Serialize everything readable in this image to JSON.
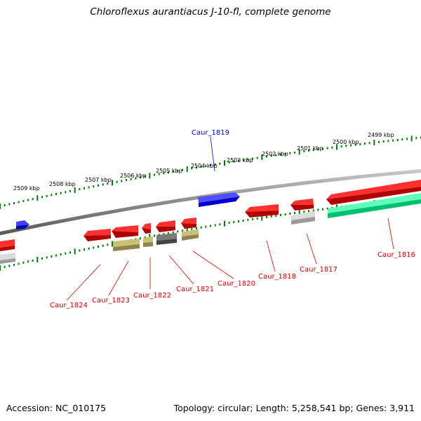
{
  "title": "Chloroflexus aurantiacus J-10-fl, complete genome",
  "footer": {
    "accession": "Accession: NC_010175",
    "info": "Topology: circular; Length: 5,258,541 bp; Genes: 3,911"
  },
  "colors": {
    "backbone": "#8a8a8a",
    "cds": "#ff0000",
    "highlight": "#0000ff",
    "rna": "#1aff99",
    "khaki": "#b9b06a",
    "dark_gray": "#666666",
    "light_gray": "#c8c8c8",
    "ticks": "#007a00",
    "gene_label": "#cc0000",
    "highlight_label": "#0000cc"
  },
  "scale_labels": [
    "2509 kbp",
    "2508 kbp",
    "2507 kbp",
    "2506 kbp",
    "2505 kbp",
    "2504 kbp",
    "2503 kbp",
    "2502 kbp",
    "2501 kbp",
    "2500 kbp",
    "2499 kbp"
  ],
  "gene_labels": [
    {
      "text": "Caur_1819",
      "style": "highlight"
    },
    {
      "text": "Caur_1824",
      "style": "normal"
    },
    {
      "text": "Caur_1823",
      "style": "normal"
    },
    {
      "text": "Caur_1822",
      "style": "normal"
    },
    {
      "text": "Caur_1821",
      "style": "normal"
    },
    {
      "text": "Caur_1820",
      "style": "normal"
    },
    {
      "text": "Caur_1818",
      "style": "normal"
    },
    {
      "text": "Caur_1817",
      "style": "normal"
    },
    {
      "text": "Caur_1816",
      "style": "normal"
    }
  ]
}
